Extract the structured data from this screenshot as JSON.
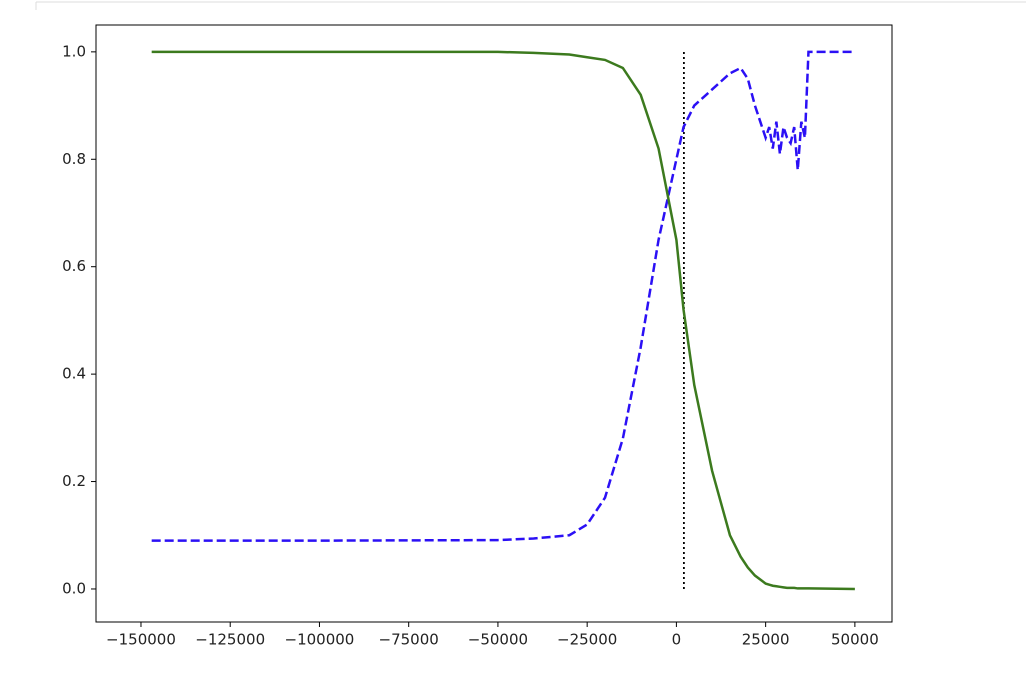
{
  "chart_data": {
    "type": "line",
    "x": [
      -147000,
      -100000,
      -50000,
      -40000,
      -30000,
      -25000,
      -20000,
      -15000,
      -10000,
      -5000,
      0,
      2000,
      5000,
      10000,
      15000,
      18000,
      20000,
      22000,
      25000,
      26000,
      27000,
      28000,
      29000,
      30000,
      31000,
      32000,
      33000,
      34000,
      35000,
      36000,
      37000,
      50000
    ],
    "series": [
      {
        "color": "#2b10f5",
        "linestyle": "--",
        "values": [
          0.09,
          0.09,
          0.091,
          0.094,
          0.1,
          0.12,
          0.17,
          0.28,
          0.45,
          0.65,
          0.8,
          0.86,
          0.9,
          0.93,
          0.96,
          0.97,
          0.95,
          0.9,
          0.84,
          0.86,
          0.82,
          0.87,
          0.81,
          0.86,
          0.84,
          0.83,
          0.86,
          0.78,
          0.87,
          0.84,
          1.0,
          1.0
        ]
      },
      {
        "color": "#3c7a1e",
        "linestyle": "-",
        "values": [
          1,
          1,
          1,
          0.998,
          0.995,
          0.99,
          0.985,
          0.97,
          0.92,
          0.82,
          0.65,
          0.52,
          0.38,
          0.22,
          0.1,
          0.06,
          0.04,
          0.025,
          0.01,
          0.008,
          0.006,
          0.005,
          0.004,
          0.003,
          0.002,
          0.002,
          0.002,
          0.001,
          0.001,
          0.001,
          0.001,
          0
        ]
      }
    ],
    "vline": {
      "x": 2100,
      "ymin": 0,
      "ymax": 1,
      "color": "#000000",
      "linestyle": ":"
    },
    "xlim": [
      -162600,
      60400
    ],
    "ylim": [
      -0.0615,
      1.05
    ],
    "xticks": [
      {
        "value": -150000,
        "label": "−150000"
      },
      {
        "value": -125000,
        "label": "−125000"
      },
      {
        "value": -100000,
        "label": "−100000"
      },
      {
        "value": -75000,
        "label": "−75000"
      },
      {
        "value": -50000,
        "label": "−50000"
      },
      {
        "value": -25000,
        "label": "−25000"
      },
      0,
      25000,
      50000
    ],
    "yticks": [
      {
        "value": 0,
        "label": "0.0"
      },
      0.2,
      0.4,
      0.6,
      0.8,
      {
        "value": 1,
        "label": "1.0"
      }
    ]
  }
}
